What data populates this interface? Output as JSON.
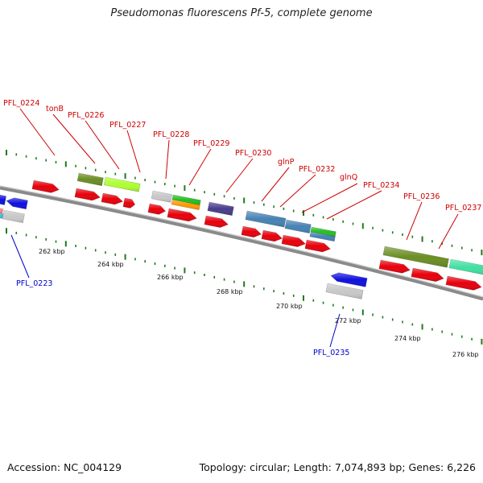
{
  "title": "Pseudomonas fluorescens Pf-5, complete genome",
  "footer": {
    "accession": "Accession: NC_004129",
    "summary": "Topology: circular; Length: 7,074,893 bp; Genes: 6,226"
  },
  "tick_labels": [
    "262 kbp",
    "264 kbp",
    "266 kbp",
    "268 kbp",
    "270 kbp",
    "272 kbp",
    "274 kbp",
    "276 kbp"
  ],
  "gene_labels": [
    {
      "name": "PFL_0224",
      "strand": "forward"
    },
    {
      "name": "tonB",
      "strand": "forward"
    },
    {
      "name": "PFL_0226",
      "strand": "forward"
    },
    {
      "name": "PFL_0227",
      "strand": "forward"
    },
    {
      "name": "PFL_0228",
      "strand": "forward"
    },
    {
      "name": "PFL_0229",
      "strand": "forward"
    },
    {
      "name": "PFL_0230",
      "strand": "forward"
    },
    {
      "name": "glnP",
      "strand": "forward"
    },
    {
      "name": "PFL_0232",
      "strand": "forward"
    },
    {
      "name": "glnQ",
      "strand": "forward"
    },
    {
      "name": "PFL_0234",
      "strand": "forward"
    },
    {
      "name": "PFL_0236",
      "strand": "forward"
    },
    {
      "name": "PFL_0237",
      "strand": "forward"
    },
    {
      "name": "PFL_0223",
      "strand": "reverse"
    },
    {
      "name": "PFL_0235",
      "strand": "reverse"
    }
  ],
  "colors": {
    "forward_label": "#cc0000",
    "reverse_label": "#0000cc",
    "cds_forward": "#e8000b",
    "cds_reverse": "#1010e0",
    "backbone": "#8a8a8a",
    "tick": "#1e7a1e"
  }
}
